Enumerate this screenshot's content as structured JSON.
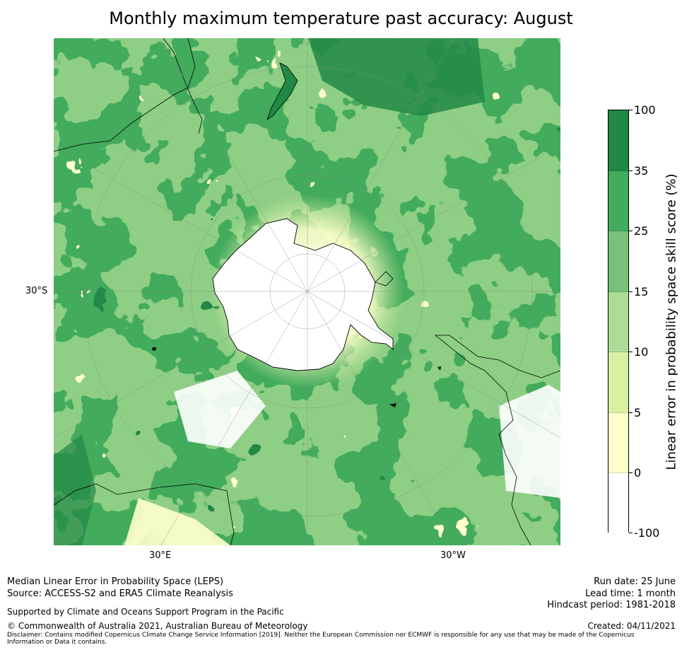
{
  "title": "Monthly maximum temperature past accuracy: August",
  "map": {
    "lat_label": "30°S",
    "lon_labels": {
      "east": "30°E",
      "west": "30°W"
    }
  },
  "colorbar": {
    "label": "Linear error in probability space skill score (%)",
    "ticks": [
      "100",
      "35",
      "25",
      "15",
      "10",
      "5",
      "0",
      "-100"
    ],
    "colors": [
      "#228845",
      "#43ab5c",
      "#77c278",
      "#abdd96",
      "#d9f0a3",
      "#ffffcc",
      "#ffffff"
    ]
  },
  "footer": {
    "line1": "Median Linear Error in Probability Space (LEPS)",
    "line2": "Source: ACCESS-S2 and ERA5 Climate Reanalysis",
    "support": "Supported by Climate and Oceans Support Program in the Pacific",
    "copyright": "© Commonwealth of Australia 2021, Australian Bureau of Meteorology",
    "disclaimer": "Disclaimer: Contains modified Copernicus Climate Change Service Information [2019]. Neither the European Commission nor ECMWF is responsible for any use that may be made of the Copernicus Information or Data it contains.",
    "run_date": "Run date: 25 June",
    "lead_time": "Lead time: 1 month",
    "hindcast": "Hindcast period: 1981-2018",
    "created": "Created: 04/11/2021"
  }
}
